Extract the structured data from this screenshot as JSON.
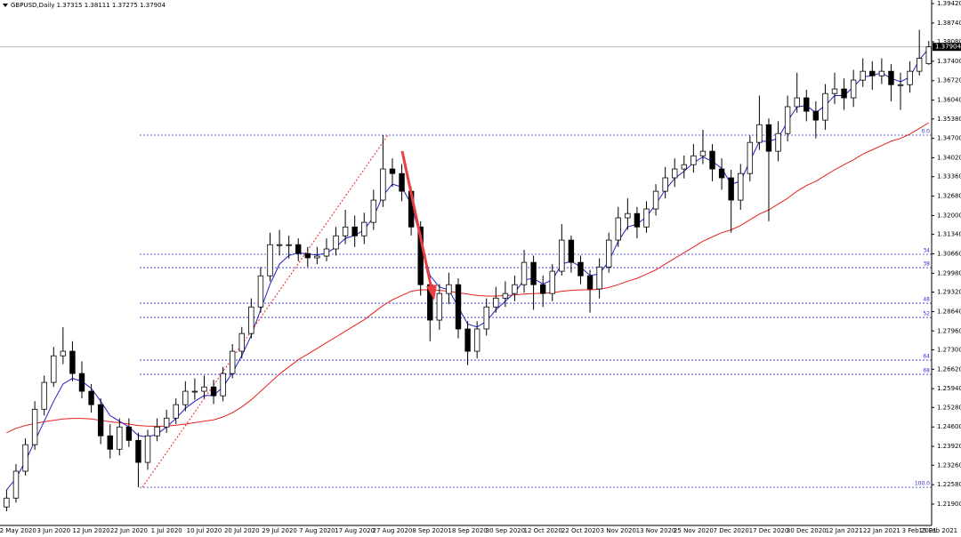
{
  "chart_data": {
    "type": "candlestick",
    "title": "GBPUSD,Daily  1.37315 1.38111 1.37275 1.37904",
    "categories": [
      null,
      "22 May 2020",
      null,
      null,
      null,
      "3 Jun 2020",
      null,
      null,
      null,
      "12 Jun 2020",
      null,
      null,
      null,
      "22 Jun 2020",
      null,
      null,
      null,
      "1 Jul 2020",
      null,
      null,
      null,
      "10 Jul 2020",
      null,
      null,
      null,
      "20 Jul 2020",
      null,
      null,
      null,
      "29 Jul 2020",
      null,
      null,
      null,
      "7 Aug 2020",
      null,
      null,
      null,
      "17 Aug 2020",
      null,
      null,
      null,
      "27 Aug 2020",
      null,
      null,
      null,
      "8 Sep 2020",
      null,
      null,
      null,
      "18 Sep 2020",
      null,
      null,
      null,
      "30 Sep 2020",
      null,
      null,
      null,
      "12 Oct 2020",
      null,
      null,
      null,
      "22 Oct 2020",
      null,
      null,
      null,
      "3 Nov 2020",
      null,
      null,
      null,
      "13 Nov 2020",
      null,
      null,
      null,
      "25 Nov 2020",
      null,
      null,
      null,
      "7 Dec 2020",
      null,
      null,
      null,
      "17 Dec 2020",
      null,
      null,
      null,
      "30 Dec 2020",
      null,
      null,
      null,
      "12 Jan 2021",
      null,
      null,
      null,
      "22 Jan 2021",
      null,
      null,
      null,
      "3 Feb 2021",
      null,
      "15 Feb 2021"
    ],
    "ohlc": [
      [
        1.218,
        1.224,
        1.2165,
        1.2211
      ],
      [
        1.2211,
        1.233,
        1.2195,
        1.2305
      ],
      [
        1.2305,
        1.242,
        1.229,
        1.2398
      ],
      [
        1.2398,
        1.255,
        1.238,
        1.2522
      ],
      [
        1.2522,
        1.264,
        1.25,
        1.2616
      ],
      [
        1.2616,
        1.274,
        1.26,
        1.2709
      ],
      [
        1.2709,
        1.2809,
        1.268,
        1.2725
      ],
      [
        1.2725,
        1.276,
        1.262,
        1.2647
      ],
      [
        1.2647,
        1.269,
        1.256,
        1.2585
      ],
      [
        1.2585,
        1.261,
        1.251,
        1.2538
      ],
      [
        1.2538,
        1.256,
        1.24,
        1.2429
      ],
      [
        1.2429,
        1.247,
        1.235,
        1.2382
      ],
      [
        1.2382,
        1.249,
        1.236,
        1.246
      ],
      [
        1.246,
        1.249,
        1.239,
        1.2413
      ],
      [
        1.2413,
        1.244,
        1.2249,
        1.2336
      ],
      [
        1.2336,
        1.245,
        1.231,
        1.2429
      ],
      [
        1.2429,
        1.249,
        1.241,
        1.246
      ],
      [
        1.246,
        1.252,
        1.244,
        1.2491
      ],
      [
        1.2491,
        1.256,
        1.247,
        1.2538
      ],
      [
        1.2538,
        1.262,
        1.2515,
        1.2585
      ],
      [
        1.2585,
        1.263,
        1.2555,
        1.2585
      ],
      [
        1.2585,
        1.264,
        1.256,
        1.26
      ],
      [
        1.26,
        1.2625,
        1.254,
        1.2569
      ],
      [
        1.2569,
        1.267,
        1.255,
        1.2647
      ],
      [
        1.2647,
        1.275,
        1.263,
        1.2725
      ],
      [
        1.2725,
        1.281,
        1.27,
        1.2787
      ],
      [
        1.2787,
        1.291,
        1.277,
        1.288
      ],
      [
        1.288,
        1.302,
        1.286,
        1.2989
      ],
      [
        1.2989,
        1.314,
        1.297,
        1.3098
      ],
      [
        1.3098,
        1.315,
        1.306,
        1.3098
      ],
      [
        1.3098,
        1.313,
        1.305,
        1.3098
      ],
      [
        1.3098,
        1.312,
        1.304,
        1.3067
      ],
      [
        1.3067,
        1.309,
        1.302,
        1.3052
      ],
      [
        1.3052,
        1.309,
        1.303,
        1.3058
      ],
      [
        1.3058,
        1.312,
        1.304,
        1.3083
      ],
      [
        1.3083,
        1.316,
        1.306,
        1.3129
      ],
      [
        1.3129,
        1.322,
        1.31,
        1.316
      ],
      [
        1.316,
        1.32,
        1.309,
        1.3129
      ],
      [
        1.3129,
        1.321,
        1.31,
        1.3176
      ],
      [
        1.3176,
        1.329,
        1.315,
        1.3254
      ],
      [
        1.3254,
        1.3481,
        1.323,
        1.3363
      ],
      [
        1.3363,
        1.34,
        1.33,
        1.3347
      ],
      [
        1.3347,
        1.338,
        1.325,
        1.3285
      ],
      [
        1.3285,
        1.33,
        1.313,
        1.316
      ],
      [
        1.316,
        1.318,
        1.292,
        1.2958
      ],
      [
        1.2958,
        1.299,
        1.276,
        1.2834
      ],
      [
        1.2834,
        1.296,
        1.28,
        1.2927
      ],
      [
        1.2927,
        1.3,
        1.289,
        1.2958
      ],
      [
        1.2958,
        1.298,
        1.277,
        1.2803
      ],
      [
        1.2803,
        1.283,
        1.2676,
        1.2725
      ],
      [
        1.2725,
        1.283,
        1.27,
        1.2803
      ],
      [
        1.2803,
        1.291,
        1.278,
        1.288
      ],
      [
        1.288,
        1.295,
        1.286,
        1.2911
      ],
      [
        1.2911,
        1.297,
        1.288,
        1.2927
      ],
      [
        1.2927,
        1.299,
        1.29,
        1.2958
      ],
      [
        1.2958,
        1.308,
        1.293,
        1.3036
      ],
      [
        1.3036,
        1.306,
        1.287,
        1.2958
      ],
      [
        1.2958,
        1.299,
        1.288,
        1.2927
      ],
      [
        1.2927,
        1.303,
        1.29,
        1.3005
      ],
      [
        1.3005,
        1.317,
        1.299,
        1.3114
      ],
      [
        1.3114,
        1.313,
        1.3,
        1.3036
      ],
      [
        1.3036,
        1.306,
        1.296,
        1.2989
      ],
      [
        1.2989,
        1.301,
        1.286,
        1.2943
      ],
      [
        1.2943,
        1.305,
        1.291,
        1.302
      ],
      [
        1.302,
        1.314,
        1.3,
        1.3114
      ],
      [
        1.3114,
        1.323,
        1.309,
        1.3192
      ],
      [
        1.3192,
        1.326,
        1.315,
        1.3207
      ],
      [
        1.3207,
        1.323,
        1.312,
        1.316
      ],
      [
        1.316,
        1.325,
        1.314,
        1.3223
      ],
      [
        1.3223,
        1.331,
        1.32,
        1.3285
      ],
      [
        1.3285,
        1.337,
        1.326,
        1.3332
      ],
      [
        1.3332,
        1.34,
        1.33,
        1.3363
      ],
      [
        1.3363,
        1.341,
        1.333,
        1.3378
      ],
      [
        1.3378,
        1.345,
        1.335,
        1.3409
      ],
      [
        1.3409,
        1.35,
        1.338,
        1.3425
      ],
      [
        1.3425,
        1.345,
        1.332,
        1.3363
      ],
      [
        1.3363,
        1.34,
        1.329,
        1.3332
      ],
      [
        1.3332,
        1.336,
        1.314,
        1.3254
      ],
      [
        1.3254,
        1.338,
        1.322,
        1.3347
      ],
      [
        1.3347,
        1.348,
        1.332,
        1.3456
      ],
      [
        1.3456,
        1.362,
        1.343,
        1.3518
      ],
      [
        1.3518,
        1.354,
        1.318,
        1.3425
      ],
      [
        1.3425,
        1.353,
        1.339,
        1.3487
      ],
      [
        1.3487,
        1.362,
        1.346,
        1.3581
      ],
      [
        1.3581,
        1.37,
        1.356,
        1.3612
      ],
      [
        1.3612,
        1.364,
        1.353,
        1.3565
      ],
      [
        1.3565,
        1.36,
        1.347,
        1.3534
      ],
      [
        1.3534,
        1.366,
        1.35,
        1.3627
      ],
      [
        1.3627,
        1.37,
        1.359,
        1.3643
      ],
      [
        1.3643,
        1.368,
        1.357,
        1.3612
      ],
      [
        1.3612,
        1.371,
        1.358,
        1.3674
      ],
      [
        1.3674,
        1.375,
        1.365,
        1.3705
      ],
      [
        1.3705,
        1.374,
        1.364,
        1.3689
      ],
      [
        1.3689,
        1.375,
        1.366,
        1.3705
      ],
      [
        1.3705,
        1.373,
        1.36,
        1.3658
      ],
      [
        1.3658,
        1.37,
        1.357,
        1.3658
      ],
      [
        1.3658,
        1.374,
        1.363,
        1.3705
      ],
      [
        1.3705,
        1.385,
        1.369,
        1.375
      ],
      [
        1.37315,
        1.38111,
        1.37275,
        1.37904
      ],
      null
    ],
    "series": [
      {
        "color": "#e82020",
        "values": [
          1.244,
          1.2455,
          1.2465,
          1.2472,
          1.2478,
          1.2483,
          1.2488,
          1.249,
          1.249,
          1.2488,
          1.2483,
          1.2478,
          1.2475,
          1.247,
          1.2465,
          1.2463,
          1.2462,
          1.2463,
          1.2466,
          1.247,
          1.2475,
          1.248,
          1.2485,
          1.2495,
          1.251,
          1.253,
          1.2555,
          1.2585,
          1.2615,
          1.2645,
          1.267,
          1.2695,
          1.2715,
          1.2735,
          1.2755,
          1.2775,
          1.2795,
          1.2815,
          1.2835,
          1.286,
          1.2885,
          1.2905,
          1.292,
          1.2935,
          1.294,
          1.294,
          1.2938,
          1.2935,
          1.293,
          1.2925,
          1.292,
          1.2918,
          1.2918,
          1.292,
          1.2922,
          1.2925,
          1.2927,
          1.2928,
          1.293,
          1.2935,
          1.2938,
          1.294,
          1.294,
          1.2942,
          1.2948,
          1.2958,
          1.297,
          1.298,
          1.2995,
          1.301,
          1.303,
          1.305,
          1.307,
          1.309,
          1.311,
          1.3125,
          1.314,
          1.315,
          1.3165,
          1.3185,
          1.3205,
          1.322,
          1.324,
          1.326,
          1.3285,
          1.3305,
          1.332,
          1.334,
          1.336,
          1.3378,
          1.3395,
          1.3415,
          1.343,
          1.3445,
          1.346,
          1.347,
          1.3485,
          1.3505,
          1.3525,
          null
        ]
      },
      {
        "color": "#2020c8",
        "values": [
          1.224,
          1.228,
          1.234,
          1.241,
          1.248,
          1.255,
          1.261,
          1.263,
          1.262,
          1.2595,
          1.255,
          1.25,
          1.248,
          1.246,
          1.243,
          1.2425,
          1.2435,
          1.246,
          1.249,
          1.2525,
          1.255,
          1.257,
          1.257,
          1.26,
          1.265,
          1.271,
          1.278,
          1.287,
          1.296,
          1.303,
          1.306,
          1.307,
          1.3065,
          1.3062,
          1.3068,
          1.309,
          1.312,
          1.313,
          1.315,
          1.3195,
          1.327,
          1.331,
          1.33,
          1.324,
          1.312,
          1.299,
          1.295,
          1.294,
          1.288,
          1.282,
          1.281,
          1.283,
          1.287,
          1.29,
          1.293,
          1.2975,
          1.298,
          1.296,
          1.2975,
          1.303,
          1.304,
          1.302,
          1.299,
          1.2995,
          1.304,
          1.311,
          1.316,
          1.317,
          1.3195,
          1.324,
          1.329,
          1.333,
          1.3355,
          1.3385,
          1.3405,
          1.339,
          1.3365,
          1.331,
          1.332,
          1.339,
          1.346,
          1.346,
          1.347,
          1.353,
          1.358,
          1.3585,
          1.356,
          1.3585,
          1.362,
          1.362,
          1.365,
          1.3685,
          1.369,
          1.37,
          1.368,
          1.3668,
          1.3685,
          1.3745,
          1.3785,
          null
        ]
      }
    ],
    "ylim": [
      1.21184,
      1.39544
    ],
    "yticks": [
      {
        "value": 1.3942,
        "label": "1.39420"
      },
      {
        "value": 1.3874,
        "label": "1.38740"
      },
      {
        "value": 1.3808,
        "label": "1.38080"
      },
      {
        "value": 1.374,
        "label": "1.37400"
      },
      {
        "value": 1.3672,
        "label": "1.36720"
      },
      {
        "value": 1.3604,
        "label": "1.36040"
      },
      {
        "value": 1.3538,
        "label": "1.35380"
      },
      {
        "value": 1.347,
        "label": "1.34700"
      },
      {
        "value": 1.3402,
        "label": "1.34020"
      },
      {
        "value": 1.3336,
        "label": "1.33360"
      },
      {
        "value": 1.3268,
        "label": "1.32680"
      },
      {
        "value": 1.32,
        "label": "1.32000"
      },
      {
        "value": 1.3134,
        "label": "1.31340"
      },
      {
        "value": 1.3066,
        "label": "1.30660"
      },
      {
        "value": 1.2998,
        "label": "1.29980"
      },
      {
        "value": 1.2932,
        "label": "1.29320"
      },
      {
        "value": 1.2864,
        "label": "1.28640"
      },
      {
        "value": 1.2796,
        "label": "1.27960"
      },
      {
        "value": 1.273,
        "label": "1.27300"
      },
      {
        "value": 1.2662,
        "label": "1.26620"
      },
      {
        "value": 1.2594,
        "label": "1.25940"
      },
      {
        "value": 1.2528,
        "label": "1.25280"
      },
      {
        "value": 1.246,
        "label": "1.24600"
      },
      {
        "value": 1.2392,
        "label": "1.23920"
      },
      {
        "value": 1.2326,
        "label": "1.23260"
      },
      {
        "value": 1.2258,
        "label": "1.22580"
      },
      {
        "value": 1.219,
        "label": "1.21900"
      }
    ],
    "current_price": {
      "value": 1.37904,
      "label": "1.37904"
    },
    "fib_levels": [
      {
        "value": 1.34813,
        "label": "0.0"
      },
      {
        "value": 1.30643,
        "label": "34"
      },
      {
        "value": 1.30176,
        "label": "38"
      },
      {
        "value": 1.28931,
        "label": "48"
      },
      {
        "value": 1.28433,
        "label": "52"
      },
      {
        "value": 1.26939,
        "label": "64"
      },
      {
        "value": 1.26441,
        "label": "68"
      },
      {
        "value": 1.22488,
        "label": "100.0"
      }
    ],
    "fib_color": "#2b2bd6",
    "up_color": "#ffffff",
    "down_color": "#000000"
  }
}
